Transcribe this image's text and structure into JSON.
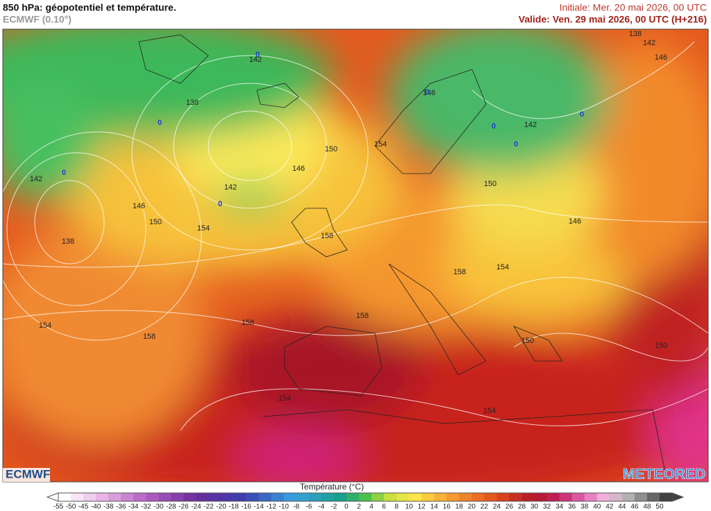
{
  "header": {
    "title": "850 hPa: géopotentiel et température.",
    "model": "ECMWF (0.10°)",
    "initial": "Initiale: Mer. 20 mai 2026, 00 UTC",
    "valid": "Valide: Ven. 29 mai 2026, 00 UTC (H+216)"
  },
  "map": {
    "contour_labels": [
      142,
      138,
      150,
      154,
      146,
      142,
      138,
      142,
      146,
      142,
      146,
      142,
      146,
      150,
      154,
      138,
      158,
      150,
      146,
      154,
      158,
      154,
      158,
      158,
      158,
      150,
      150,
      154,
      154
    ],
    "zero_labels": [
      0,
      0,
      0,
      0,
      0,
      0,
      0,
      0
    ]
  },
  "colorbar": {
    "title": "Température (°C)",
    "ticks": [
      -55,
      -50,
      -45,
      -40,
      -38,
      -36,
      -34,
      -32,
      -30,
      -28,
      -26,
      -24,
      -22,
      -20,
      -18,
      -16,
      -14,
      -12,
      -10,
      -8,
      -6,
      -4,
      -2,
      0,
      2,
      4,
      6,
      8,
      10,
      12,
      14,
      16,
      18,
      20,
      22,
      24,
      26,
      28,
      30,
      32,
      34,
      36,
      38,
      40,
      42,
      44,
      46,
      48,
      50
    ]
  },
  "logos": {
    "left": "ECMWF",
    "right": "METEORED"
  }
}
